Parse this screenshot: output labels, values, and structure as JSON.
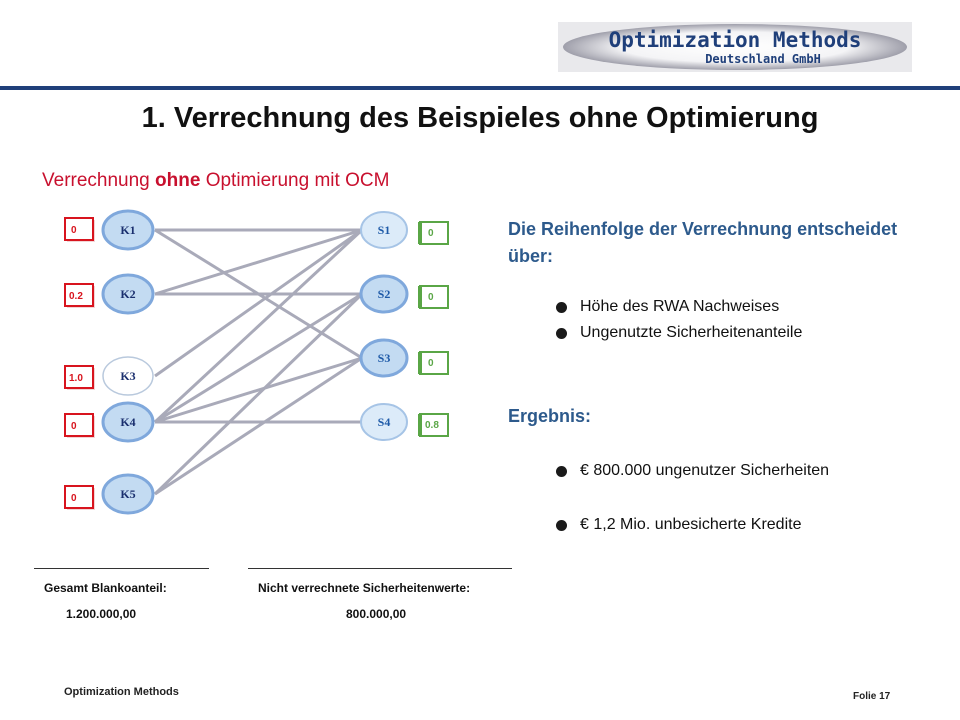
{
  "logo": {
    "line1": "Optimization Methods",
    "line2": "Deutschland GmbH"
  },
  "title": "1. Verrechnung des Beispieles ohne Optimierung",
  "subtitle": {
    "pre": "Verrechnung ",
    "emph": "ohne",
    "post": " Optimierung mit OCM"
  },
  "diagram": {
    "credits": [
      {
        "label": "K1",
        "value": "0"
      },
      {
        "label": "K2",
        "value": "0.2"
      },
      {
        "label": "K3",
        "value": "1.0"
      },
      {
        "label": "K4",
        "value": "0"
      },
      {
        "label": "K5",
        "value": "0"
      }
    ],
    "securities": [
      {
        "label": "S1",
        "value": "0"
      },
      {
        "label": "S2",
        "value": "0"
      },
      {
        "label": "S3",
        "value": "0"
      },
      {
        "label": "S4",
        "value": "0.8"
      }
    ],
    "colors": {
      "node_fill": "#cfe2f5",
      "node_stroke": "#5b8fcf",
      "line": "#a9aab9",
      "red": "#d8141e",
      "green": "#5aa646"
    }
  },
  "panel": {
    "heading": "Die Reihenfolge der Verrechnung entscheidet über:",
    "criteria": [
      "Höhe des RWA Nachweises",
      "Ungenutzte Sicherheitenanteile"
    ],
    "result_heading": "Ergebnis:",
    "results": [
      "€ 800.000 ungenutzer Sicherheiten",
      "€ 1,2 Mio. unbesicherte Kredite"
    ]
  },
  "summary": {
    "blank_label": "Gesamt Blankoanteil:",
    "blank_value": "1.200.000,00",
    "unused_label": "Nicht verrechnete Sicherheitenwerte:",
    "unused_value": "800.000,00"
  },
  "footer": {
    "company": "Optimization Methods",
    "slide": "Folie 17"
  }
}
